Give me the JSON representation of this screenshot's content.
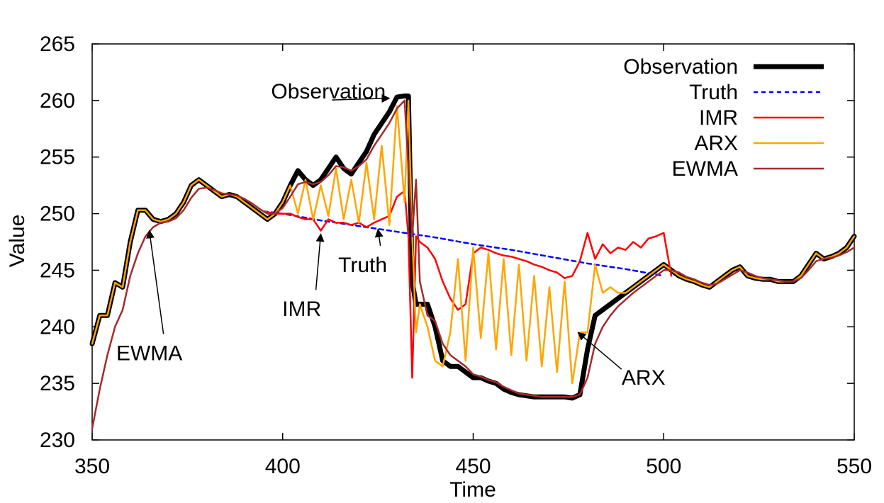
{
  "chart_data": {
    "type": "line",
    "title": "",
    "xlabel": "Time",
    "ylabel": "Value",
    "xlim": [
      350,
      550
    ],
    "ylim": [
      230,
      265
    ],
    "x_ticks": [
      "350",
      "400",
      "450",
      "500",
      "550"
    ],
    "y_ticks": [
      "230",
      "235",
      "240",
      "245",
      "250",
      "255",
      "260",
      "265"
    ],
    "grid": false,
    "legend_position": "top-right",
    "colors": {
      "Observation": "#000000",
      "Truth": "#0000ff",
      "IMR": "#ff0000",
      "ARX": "#ffa500",
      "EWMA": "#a52a2a"
    },
    "series": [
      {
        "name": "Observation",
        "style": "thick-solid",
        "x": [
          350,
          352,
          354,
          356,
          358,
          360,
          362,
          364,
          366,
          368,
          370,
          372,
          374,
          376,
          378,
          380,
          382,
          384,
          386,
          388,
          390,
          392,
          394,
          396,
          398,
          400,
          402,
          404,
          406,
          408,
          410,
          412,
          414,
          416,
          418,
          420,
          422,
          424,
          426,
          428,
          430,
          432,
          433,
          434,
          435,
          436,
          438,
          440,
          442,
          444,
          446,
          448,
          450,
          452,
          454,
          456,
          458,
          460,
          462,
          464,
          466,
          468,
          470,
          472,
          474,
          476,
          478,
          480,
          482,
          484,
          486,
          488,
          490,
          492,
          494,
          496,
          498,
          500,
          502,
          504,
          506,
          508,
          510,
          512,
          514,
          516,
          518,
          520,
          522,
          524,
          526,
          528,
          530,
          532,
          534,
          536,
          538,
          540,
          542,
          544,
          546,
          548,
          550
        ],
        "y": [
          238.5,
          241,
          241,
          243.9,
          243.5,
          247.5,
          250.3,
          250.3,
          249.5,
          249.3,
          249.5,
          250,
          251,
          252.5,
          253,
          252.5,
          252,
          251.5,
          251.7,
          251.5,
          251,
          250.5,
          250,
          249.5,
          250,
          251,
          252.5,
          253.8,
          253,
          252.5,
          253,
          254,
          255,
          254,
          253.5,
          254.5,
          255.5,
          257,
          258,
          259,
          260.3,
          260.4,
          260.4,
          244,
          242,
          242,
          242,
          240,
          237,
          236.5,
          236.5,
          236,
          235.5,
          235.5,
          235.2,
          235,
          234.5,
          234.2,
          234,
          233.9,
          233.8,
          233.8,
          233.8,
          233.8,
          233.8,
          233.7,
          234,
          238,
          241,
          241.5,
          242,
          242.5,
          243,
          243.5,
          244,
          244.5,
          245,
          245.5,
          245,
          244.5,
          244.2,
          244,
          243.7,
          243.5,
          244,
          244.5,
          245,
          245.3,
          244.5,
          244.3,
          244.2,
          244.2,
          244,
          244,
          244,
          244.5,
          245.5,
          246.5,
          246,
          246.2,
          246.5,
          247,
          248
        ],
        "color": "#000000"
      },
      {
        "name": "Truth",
        "style": "dashed",
        "x": [
          395,
          400,
          410,
          420,
          430,
          440,
          450,
          460,
          470,
          480,
          490,
          500
        ],
        "y": [
          250.2,
          250,
          249.4,
          248.9,
          248.4,
          247.9,
          247.3,
          246.8,
          246.2,
          245.6,
          245.1,
          244.5
        ],
        "color": "#0000ff"
      },
      {
        "name": "IMR",
        "style": "solid",
        "x": [
          395,
          398,
          400,
          402,
          404,
          406,
          408,
          410,
          412,
          414,
          416,
          418,
          420,
          422,
          424,
          426,
          428,
          430,
          432,
          433,
          434,
          435,
          436,
          438,
          440,
          442,
          444,
          446,
          448,
          450,
          452,
          454,
          456,
          458,
          460,
          462,
          464,
          466,
          468,
          470,
          472,
          474,
          476,
          478,
          480,
          482,
          484,
          486,
          488,
          490,
          492,
          494,
          496,
          498,
          500,
          502
        ],
        "y": [
          250.2,
          250,
          250,
          250,
          249.7,
          249.5,
          249.5,
          248.5,
          249.5,
          249.2,
          249.2,
          249,
          249.2,
          248.8,
          249.2,
          249.5,
          249.8,
          251.5,
          252,
          248,
          235.5,
          248,
          247.5,
          247,
          246,
          244,
          242.5,
          241.5,
          242,
          246.5,
          247,
          246.8,
          246.5,
          246.3,
          246.2,
          246,
          245.8,
          245.5,
          245.3,
          245,
          244.8,
          244.3,
          244.5,
          245.8,
          248.3,
          246,
          247.3,
          246.5,
          247,
          246.8,
          247.5,
          247,
          247.8,
          248,
          248.3,
          244.5
        ],
        "color": "#ff0000"
      },
      {
        "name": "ARX",
        "style": "solid",
        "x": [
          350,
          352,
          354,
          356,
          358,
          360,
          362,
          364,
          366,
          368,
          370,
          372,
          374,
          376,
          378,
          380,
          382,
          384,
          386,
          388,
          390,
          392,
          394,
          396,
          398,
          400,
          402,
          404,
          406,
          408,
          410,
          412,
          414,
          416,
          418,
          420,
          422,
          424,
          426,
          428,
          430,
          432,
          433,
          434,
          435,
          436,
          438,
          440,
          442,
          444,
          446,
          448,
          450,
          452,
          454,
          456,
          458,
          460,
          462,
          464,
          466,
          468,
          470,
          472,
          474,
          476,
          478,
          480,
          482,
          484,
          486,
          488,
          490,
          492,
          494,
          496,
          498,
          500,
          502,
          504,
          506,
          508,
          510,
          512,
          514,
          516,
          518,
          520,
          522,
          524,
          526,
          528,
          530,
          532,
          534,
          536,
          538,
          540,
          542,
          544,
          546,
          548,
          550
        ],
        "y": [
          238.5,
          241,
          241,
          243.9,
          243.5,
          247.5,
          250.3,
          250.3,
          249.5,
          249.3,
          249.5,
          250,
          251,
          252.5,
          253,
          252.5,
          252,
          251.5,
          251.7,
          251.5,
          251,
          250.5,
          250,
          249.5,
          250,
          251,
          252.5,
          250,
          253,
          249.5,
          252.5,
          249.8,
          254,
          249.5,
          253,
          249.2,
          254.5,
          249.5,
          256,
          249,
          259.5,
          251,
          260,
          248,
          239.5,
          242,
          240,
          237,
          236.5,
          239.5,
          246,
          237,
          247,
          239,
          246.5,
          238,
          246,
          237.5,
          245.5,
          237,
          244.5,
          236.5,
          243.5,
          236,
          244,
          235,
          239.5,
          239.5,
          245.5,
          243,
          243.5,
          243,
          243,
          243.5,
          244,
          244.5,
          245,
          245.5,
          245,
          244.5,
          244.2,
          244,
          243.7,
          243.5,
          244,
          244.5,
          245,
          245.3,
          244.5,
          244.3,
          244.2,
          244.2,
          244,
          244,
          244,
          244.5,
          245.5,
          246.5,
          246,
          246.2,
          246.5,
          247,
          248
        ],
        "color": "#ffa500"
      },
      {
        "name": "EWMA",
        "style": "solid",
        "x": [
          350,
          352,
          354,
          356,
          358,
          360,
          362,
          364,
          366,
          368,
          370,
          372,
          374,
          376,
          378,
          380,
          382,
          384,
          386,
          388,
          390,
          392,
          394,
          396,
          398,
          400,
          402,
          404,
          406,
          408,
          410,
          412,
          414,
          416,
          418,
          420,
          422,
          424,
          426,
          428,
          430,
          432,
          433,
          434,
          435,
          436,
          438,
          440,
          442,
          444,
          446,
          448,
          450,
          452,
          454,
          456,
          458,
          460,
          462,
          464,
          466,
          468,
          470,
          472,
          474,
          476,
          478,
          480,
          482,
          484,
          486,
          488,
          490,
          492,
          494,
          496,
          498,
          500,
          502,
          504,
          506,
          508,
          510,
          512,
          514,
          516,
          518,
          520,
          522,
          524,
          526,
          528,
          530,
          532,
          534,
          536,
          538,
          540,
          542,
          544,
          546,
          548,
          550
        ],
        "y": [
          231,
          234.5,
          237.5,
          240,
          241.5,
          244.5,
          246.5,
          248,
          248.8,
          249.2,
          249.3,
          249.6,
          250.3,
          251.4,
          252.2,
          252.3,
          252.1,
          251.8,
          251.7,
          251.6,
          251.3,
          250.9,
          250.4,
          250,
          250,
          250.5,
          251.5,
          252.6,
          252.8,
          252.6,
          252.8,
          253.4,
          254.2,
          254.1,
          253.8,
          254.2,
          254.8,
          256,
          257,
          258,
          259.3,
          260,
          254,
          248,
          253,
          244,
          241,
          240.5,
          238.5,
          237.5,
          237,
          236.5,
          235.8,
          235.6,
          235.3,
          235.1,
          234.7,
          234.4,
          234.1,
          234,
          233.9,
          233.8,
          233.8,
          233.8,
          233.8,
          233.8,
          234,
          235.5,
          238.5,
          240,
          241,
          241.8,
          242.4,
          243,
          243.5,
          244,
          244.5,
          245,
          245,
          244.8,
          244.4,
          244.2,
          243.9,
          243.7,
          243.8,
          244.2,
          244.6,
          245,
          244.8,
          244.5,
          244.3,
          244.2,
          244.1,
          244,
          244,
          244.3,
          245,
          245.8,
          246,
          246.1,
          246.3,
          246.6,
          247
        ],
        "color": "#a52a2a"
      }
    ],
    "annotations": [
      {
        "label": "Observation",
        "text_x": 412,
        "text_y": 260.8,
        "target_x": 428,
        "target_y": 260.2
      },
      {
        "label": "IMR",
        "text_x": 405,
        "text_y": 241.7,
        "target_x": 410,
        "target_y": 248.2
      },
      {
        "label": "Truth",
        "text_x": 421,
        "text_y": 245.6,
        "target_x": 425,
        "target_y": 248.6
      },
      {
        "label": "EWMA",
        "text_x": 365,
        "text_y": 237.8,
        "target_x": 365,
        "target_y": 248.5
      },
      {
        "label": "ARX",
        "text_x": 488,
        "text_y": 235.5,
        "target_x": 477.5,
        "target_y": 239.5
      }
    ]
  }
}
